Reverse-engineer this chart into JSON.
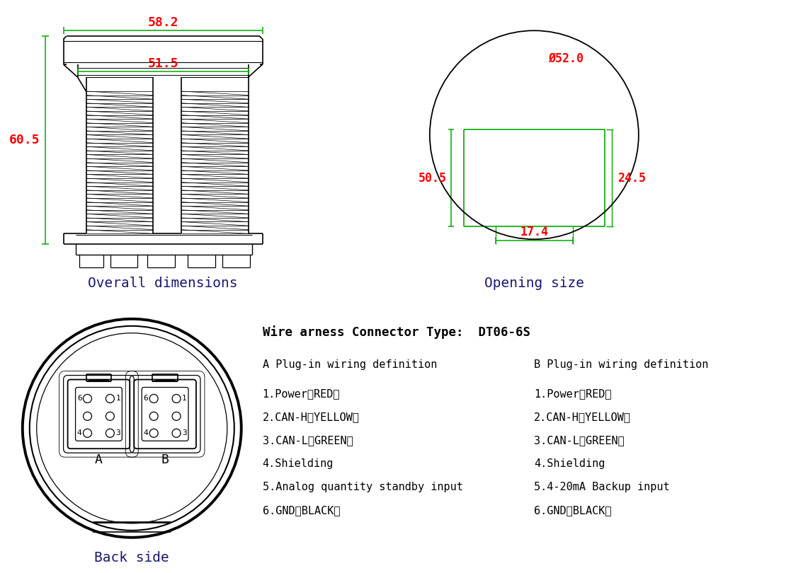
{
  "bg_color": "#ffffff",
  "line_color": "#000000",
  "dim_color": "#ff0000",
  "green_color": "#00aa00",
  "title_color": "#1a1a6e",
  "fig_width": 11.17,
  "fig_height": 8.1,
  "section1_label": "Overall dimensions",
  "section2_label": "Opening size",
  "section3_label": "Back side",
  "connector_title": "Wire arness Connector Type:  DT06-6S",
  "dim_58_2": "58.2",
  "dim_51_5": "51.5",
  "dim_60_5": "60.5",
  "dim_50_5": "50.5",
  "dim_52_0": "Ø52.0",
  "dim_24_5": "24.5",
  "dim_17_4": "17.4",
  "col_A_title": "A Plug-in wiring definition",
  "col_A_lines": [
    "1.Power（RED）",
    "2.CAN-H（YELLOW）",
    "3.CAN-L（GREEN）",
    "4.Shielding",
    "5.Analog quantity standby input",
    "6.GND（BLACK）"
  ],
  "col_B_title": "B Plug-in wiring definition",
  "col_B_lines": [
    "1.Power（RED）",
    "2.CAN-H（YELLOW）",
    "3.CAN-L（GREEN）",
    "4.Shielding",
    "5.4-20mA Backup input",
    "6.GND（BLACK）"
  ]
}
